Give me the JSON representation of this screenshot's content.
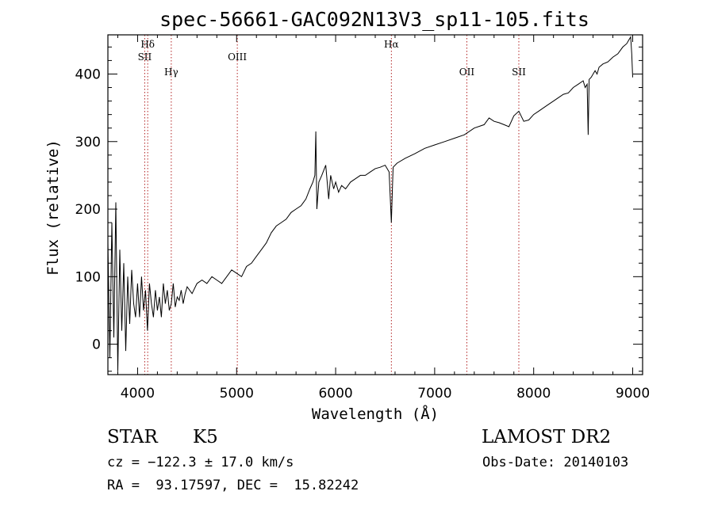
{
  "chart_data": {
    "type": "line",
    "title": "spec-56661-GAC092N13V3_sp11-105.fits",
    "xlabel": "Wavelength (Å)",
    "ylabel": "Flux (relative)",
    "xlim": [
      3700,
      9100
    ],
    "ylim": [
      -45,
      458
    ],
    "xticks": [
      4000,
      5000,
      6000,
      7000,
      8000,
      9000
    ],
    "yticks": [
      0,
      100,
      200,
      300,
      400
    ],
    "grid": false,
    "series": [
      {
        "x": [
          3700,
          3720,
          3740,
          3760,
          3780,
          3800,
          3820,
          3840,
          3860,
          3880,
          3900,
          3920,
          3940,
          3960,
          3980,
          4000,
          4020,
          4040,
          4060,
          4080,
          4100,
          4120,
          4140,
          4160,
          4180,
          4200,
          4220,
          4240,
          4260,
          4280,
          4300,
          4320,
          4340,
          4360,
          4380,
          4400,
          4420,
          4440,
          4460,
          4480,
          4500,
          4550,
          4600,
          4650,
          4700,
          4750,
          4800,
          4850,
          4900,
          4950,
          5000,
          5050,
          5100,
          5150,
          5200,
          5250,
          5300,
          5350,
          5400,
          5450,
          5500,
          5550,
          5600,
          5650,
          5700,
          5740,
          5770,
          5790,
          5800,
          5810,
          5830,
          5860,
          5900,
          5930,
          5950,
          5980,
          6000,
          6030,
          6060,
          6100,
          6150,
          6200,
          6250,
          6300,
          6350,
          6400,
          6450,
          6500,
          6540,
          6563,
          6580,
          6620,
          6700,
          6800,
          6900,
          7000,
          7100,
          7200,
          7300,
          7400,
          7500,
          7550,
          7600,
          7650,
          7700,
          7750,
          7800,
          7850,
          7900,
          7950,
          8000,
          8050,
          8100,
          8150,
          8200,
          8250,
          8300,
          8350,
          8400,
          8450,
          8500,
          8520,
          8540,
          8550,
          8560,
          8580,
          8600,
          8620,
          8640,
          8660,
          8700,
          8750,
          8800,
          8850,
          8900,
          8940,
          8960,
          8980,
          8990,
          9000
        ],
        "y": [
          150,
          -20,
          180,
          10,
          210,
          -40,
          140,
          20,
          120,
          -10,
          100,
          30,
          110,
          60,
          40,
          90,
          40,
          100,
          50,
          80,
          20,
          90,
          60,
          40,
          80,
          50,
          70,
          40,
          90,
          60,
          80,
          50,
          60,
          90,
          55,
          70,
          65,
          80,
          60,
          75,
          85,
          75,
          90,
          95,
          90,
          100,
          95,
          90,
          100,
          110,
          105,
          100,
          115,
          120,
          130,
          140,
          150,
          165,
          175,
          180,
          185,
          195,
          200,
          205,
          215,
          230,
          240,
          250,
          315,
          200,
          240,
          250,
          265,
          215,
          250,
          230,
          240,
          225,
          235,
          230,
          240,
          245,
          250,
          250,
          255,
          260,
          262,
          265,
          255,
          180,
          262,
          268,
          275,
          282,
          290,
          295,
          300,
          305,
          310,
          320,
          325,
          335,
          330,
          328,
          325,
          322,
          338,
          345,
          330,
          332,
          340,
          345,
          350,
          355,
          360,
          365,
          370,
          372,
          380,
          385,
          390,
          380,
          385,
          310,
          392,
          395,
          400,
          405,
          400,
          410,
          415,
          418,
          425,
          430,
          440,
          445,
          450,
          455,
          430,
          395
        ]
      }
    ],
    "annotations": [
      "Hδ",
      "SII",
      "Hγ",
      "OIII",
      "Hα",
      "OII",
      "SII"
    ]
  },
  "spectral_lines": [
    {
      "wavelength": 4102,
      "label": "Hδ"
    },
    {
      "wavelength": 4072,
      "label": "SII"
    },
    {
      "wavelength": 4340,
      "label": "Hγ"
    },
    {
      "wavelength": 5007,
      "label": "OIII"
    },
    {
      "wavelength": 6563,
      "label": "Hα"
    },
    {
      "wavelength": 7325,
      "label": "OII"
    },
    {
      "wavelength": 7850,
      "label": "SII"
    }
  ],
  "info": {
    "object_class": "STAR",
    "subclass": "K5",
    "survey": "LAMOST DR2",
    "cz": "cz = −122.3 ± 17.0 km/s",
    "obs_date": "Obs-Date: 20140103",
    "radec": "RA =  93.17597, DEC =  15.82242"
  }
}
